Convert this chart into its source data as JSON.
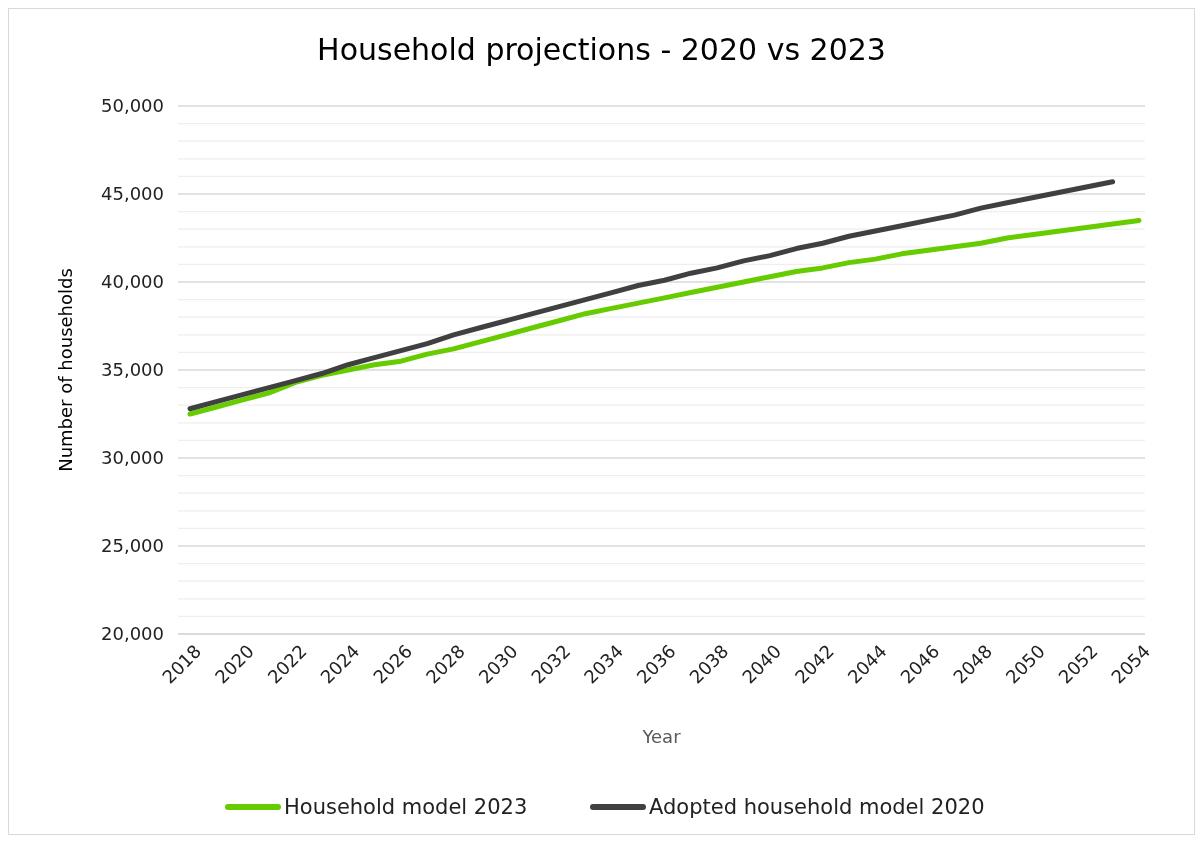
{
  "chart_data": {
    "type": "line",
    "title": "Household projections - 2020 vs 2023",
    "xlabel": "Year",
    "ylabel": "Number of households",
    "categories": [
      "2018",
      null,
      "2020",
      null,
      "2022",
      null,
      "2024",
      null,
      "2026",
      null,
      "2028",
      null,
      "2030",
      null,
      "2032",
      null,
      "2034",
      null,
      "2036",
      null,
      "2038",
      null,
      "2040",
      null,
      "2042",
      null,
      "2044",
      null,
      "2046",
      null,
      "2048",
      null,
      "2050",
      null,
      "2052",
      null,
      "2054"
    ],
    "series": [
      {
        "name": "Household model 2023",
        "color": "#66cc00",
        "values": [
          32500,
          32900,
          33300,
          33700,
          34300,
          34700,
          35000,
          35300,
          35500,
          35900,
          36200,
          36600,
          37000,
          37400,
          37800,
          38200,
          38500,
          38800,
          39100,
          39400,
          39700,
          40000,
          40300,
          40600,
          40800,
          41100,
          41300,
          41600,
          41800,
          42000,
          42200,
          42500,
          42700,
          42900,
          43100,
          43300,
          43500
        ]
      },
      {
        "name": "Adopted household model 2020",
        "color": "#404040",
        "values": [
          32800,
          33200,
          33600,
          34000,
          34400,
          34800,
          35300,
          35700,
          36100,
          36500,
          37000,
          37400,
          37800,
          38200,
          38600,
          39000,
          39400,
          39800,
          40100,
          40500,
          40800,
          41200,
          41500,
          41900,
          42200,
          42600,
          42900,
          43200,
          43500,
          43800,
          44200,
          44500,
          44800,
          45100,
          45400,
          45700,
          null
        ]
      }
    ],
    "ylim": [
      20000,
      50000
    ],
    "yticks": [
      {
        "value": 20000,
        "label": "20,000"
      },
      {
        "value": 21000,
        "label": null
      },
      {
        "value": 22000,
        "label": null
      },
      {
        "value": 23000,
        "label": null
      },
      {
        "value": 24000,
        "label": null
      },
      {
        "value": 25000,
        "label": "25,000"
      },
      {
        "value": 26000,
        "label": null
      },
      {
        "value": 27000,
        "label": null
      },
      {
        "value": 28000,
        "label": null
      },
      {
        "value": 29000,
        "label": null
      },
      {
        "value": 30000,
        "label": "30,000"
      },
      {
        "value": 31000,
        "label": null
      },
      {
        "value": 32000,
        "label": null
      },
      {
        "value": 33000,
        "label": null
      },
      {
        "value": 34000,
        "label": null
      },
      {
        "value": 35000,
        "label": "35,000"
      },
      {
        "value": 36000,
        "label": null
      },
      {
        "value": 37000,
        "label": null
      },
      {
        "value": 38000,
        "label": null
      },
      {
        "value": 39000,
        "label": null
      },
      {
        "value": 40000,
        "label": "40,000"
      },
      {
        "value": 41000,
        "label": null
      },
      {
        "value": 42000,
        "label": null
      },
      {
        "value": 43000,
        "label": null
      },
      {
        "value": 44000,
        "label": null
      },
      {
        "value": 45000,
        "label": "45,000"
      },
      {
        "value": 46000,
        "label": null
      },
      {
        "value": 47000,
        "label": null
      },
      {
        "value": 48000,
        "label": null
      },
      {
        "value": 49000,
        "label": null
      },
      {
        "value": 50000,
        "label": "50,000"
      }
    ],
    "grid": "y",
    "legend": "bottom",
    "line_style": "solid"
  }
}
